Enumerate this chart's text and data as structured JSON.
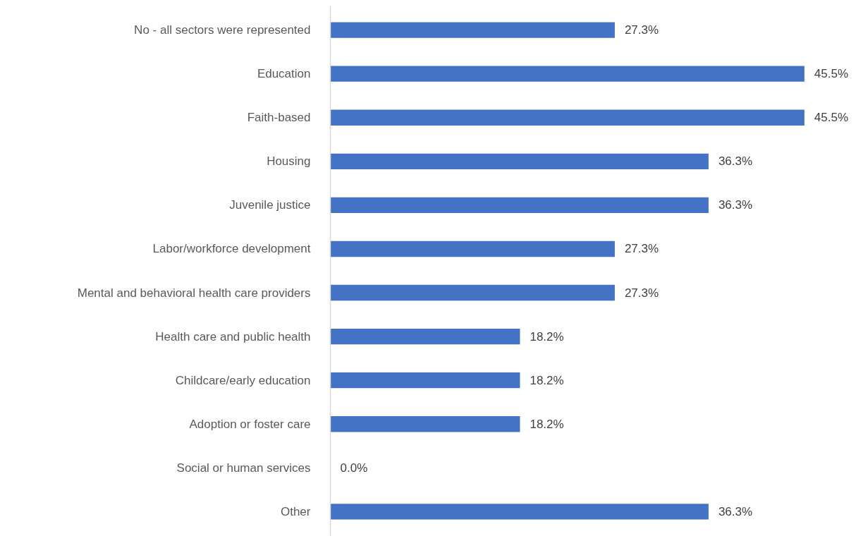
{
  "chart_data": {
    "type": "bar",
    "orientation": "horizontal",
    "categories": [
      "No - all sectors were represented",
      "Education",
      "Faith-based",
      "Housing",
      "Juvenile justice",
      "Labor/workforce development",
      "Mental and behavioral health care providers",
      "Health care and public health",
      "Childcare/early education",
      "Adoption or foster care",
      "Social or human services",
      "Other"
    ],
    "values": [
      27.3,
      45.5,
      45.5,
      36.3,
      36.3,
      27.3,
      27.3,
      18.2,
      18.2,
      18.2,
      0.0,
      36.3
    ],
    "value_labels": [
      "27.3%",
      "45.5%",
      "45.5%",
      "36.3%",
      "36.3%",
      "27.3%",
      "27.3%",
      "18.2%",
      "18.2%",
      "18.2%",
      "0.0%",
      "36.3%"
    ],
    "color": "#4472c4",
    "grid": false
  }
}
